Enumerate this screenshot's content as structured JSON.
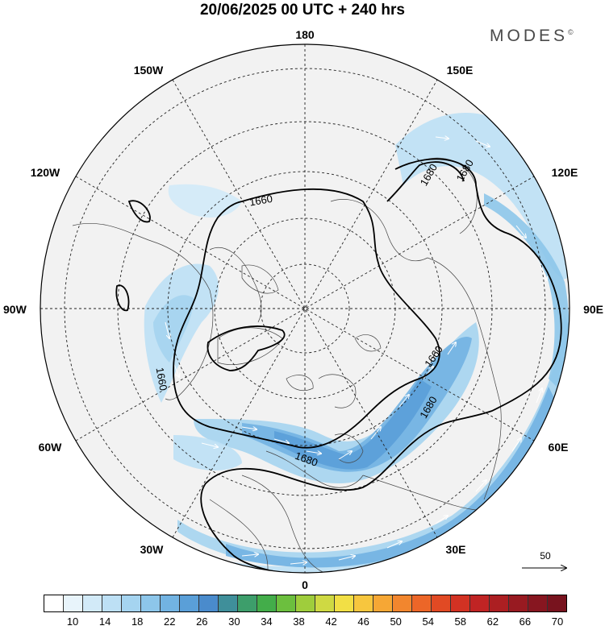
{
  "header": {
    "title": "20/06/2025  00 UTC  + 240 hrs"
  },
  "brand": {
    "name": "MODES",
    "mark": "©"
  },
  "map": {
    "projection": "north-polar-stereographic",
    "longitude_labels": {
      "top": "180",
      "bottom": "0",
      "left": "90W",
      "right": "90E",
      "upper_left_1": "150W",
      "upper_left_2": "120W",
      "upper_right_1": "150E",
      "upper_right_2": "120E",
      "lower_left_1": "60W",
      "lower_left_2": "30W",
      "lower_right_1": "60E",
      "lower_right_2": "30E"
    },
    "contour_labels": [
      "1660",
      "1680",
      "1660",
      "1680",
      "1660",
      "1680",
      "1680"
    ],
    "vector_reference": "50",
    "colors": {
      "land": "#f2f2f2",
      "ocean_outside": "#ffffff",
      "contour": "#000000"
    }
  },
  "colorbar": {
    "tick_labels": [
      "10",
      "14",
      "18",
      "22",
      "26",
      "30",
      "34",
      "38",
      "42",
      "46",
      "50",
      "54",
      "58",
      "62",
      "66",
      "70"
    ],
    "colors": [
      "#ffffff",
      "#e8f4fb",
      "#d2eaf8",
      "#bde0f5",
      "#a5d4f0",
      "#8dc6ea",
      "#72b3e2",
      "#5a9fd8",
      "#4a8bcc",
      "#3f8f9a",
      "#3d9e6b",
      "#43ad4a",
      "#6cbf3e",
      "#9fcd3c",
      "#cfd943",
      "#f2df45",
      "#f7c63e",
      "#f6a735",
      "#f2862e",
      "#ec6628",
      "#e14a24",
      "#d23223",
      "#c02424",
      "#ac1f22",
      "#981a21",
      "#871620",
      "#78131e"
    ]
  }
}
